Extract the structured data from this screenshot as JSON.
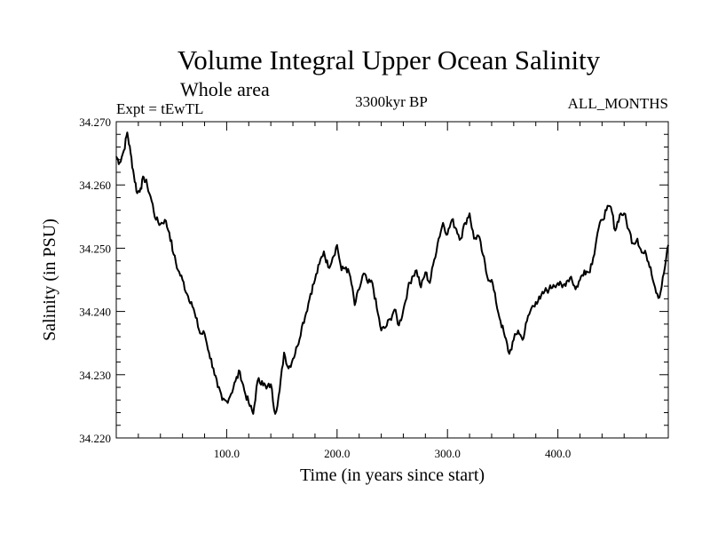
{
  "header": {
    "title": "Volume Integral Upper Ocean Salinity",
    "subtitle": "Whole area",
    "experiment": "Expt = tEwTL",
    "period": "3300kyr BP",
    "months": "ALL_MONTHS"
  },
  "chart_data": {
    "type": "line",
    "title": "Volume Integral Upper Ocean Salinity",
    "xlabel": "Time (in years since start)",
    "ylabel": "Salinity (in PSU)",
    "xlim": [
      0,
      500
    ],
    "ylim": [
      34.22,
      34.27
    ],
    "x_ticks": [
      100,
      200,
      300,
      400
    ],
    "x_tick_labels": [
      "100.0",
      "200.0",
      "300.0",
      "400.0"
    ],
    "y_ticks": [
      34.22,
      34.23,
      34.24,
      34.25,
      34.26,
      34.27
    ],
    "y_tick_labels": [
      "34.220",
      "34.230",
      "34.240",
      "34.250",
      "34.260",
      "34.270"
    ],
    "grid": false,
    "series": [
      {
        "name": "Salinity",
        "x": [
          0,
          3,
          7,
          10,
          13,
          16,
          19,
          22,
          25,
          28,
          32,
          36,
          40,
          44,
          48,
          52,
          56,
          60,
          64,
          68,
          72,
          76,
          80,
          84,
          88,
          92,
          96,
          100,
          104,
          108,
          112,
          116,
          120,
          124,
          128,
          132,
          136,
          140,
          144,
          148,
          152,
          156,
          160,
          164,
          168,
          172,
          176,
          180,
          184,
          188,
          192,
          196,
          200,
          204,
          208,
          212,
          216,
          220,
          224,
          228,
          232,
          236,
          240,
          244,
          248,
          252,
          256,
          260,
          264,
          268,
          272,
          276,
          280,
          284,
          288,
          292,
          296,
          300,
          304,
          308,
          312,
          316,
          320,
          324,
          328,
          332,
          336,
          340,
          344,
          348,
          352,
          356,
          360,
          364,
          368,
          372,
          376,
          380,
          384,
          388,
          392,
          396,
          400,
          404,
          408,
          412,
          416,
          420,
          424,
          428,
          432,
          436,
          440,
          444,
          448,
          452,
          456,
          460,
          464,
          468,
          472,
          476,
          480,
          484,
          488,
          492,
          496,
          500
        ],
        "y": [
          34.2645,
          34.2635,
          34.2655,
          34.2683,
          34.265,
          34.2615,
          34.2587,
          34.2595,
          34.2612,
          34.26,
          34.2575,
          34.2545,
          34.2538,
          34.2545,
          34.2525,
          34.249,
          34.2465,
          34.245,
          34.2428,
          34.2415,
          34.239,
          34.2365,
          34.2365,
          34.2335,
          34.231,
          34.228,
          34.226,
          34.2258,
          34.227,
          34.229,
          34.2305,
          34.2275,
          34.2255,
          34.2238,
          34.229,
          34.229,
          34.2278,
          34.2285,
          34.2238,
          34.2275,
          34.2335,
          34.231,
          34.2325,
          34.2345,
          34.2375,
          34.2398,
          34.2428,
          34.245,
          34.2475,
          34.2495,
          34.247,
          34.2485,
          34.2505,
          34.2465,
          34.247,
          34.2455,
          34.241,
          34.2435,
          34.246,
          34.2445,
          34.2445,
          34.2405,
          34.237,
          34.2375,
          34.2388,
          34.2403,
          34.2378,
          34.2402,
          34.2435,
          34.2455,
          34.2465,
          34.2438,
          34.2462,
          34.2445,
          34.2482,
          34.2515,
          34.254,
          34.2522,
          34.2545,
          34.253,
          34.2515,
          34.254,
          34.2555,
          34.2515,
          34.252,
          34.249,
          34.2455,
          34.245,
          34.2415,
          34.2385,
          34.236,
          34.2333,
          34.2355,
          34.237,
          34.2355,
          34.2385,
          34.2405,
          34.2415,
          34.242,
          34.2432,
          34.2435,
          34.2442,
          34.2445,
          34.2438,
          34.2448,
          34.2455,
          34.2435,
          34.245,
          34.2465,
          34.2462,
          34.2485,
          34.2525,
          34.2545,
          34.256,
          34.2565,
          34.2528,
          34.2553,
          34.2555,
          34.253,
          34.2508,
          34.2515,
          34.2493,
          34.249,
          34.247,
          34.2438,
          34.2422,
          34.246,
          34.2505
        ]
      }
    ]
  }
}
